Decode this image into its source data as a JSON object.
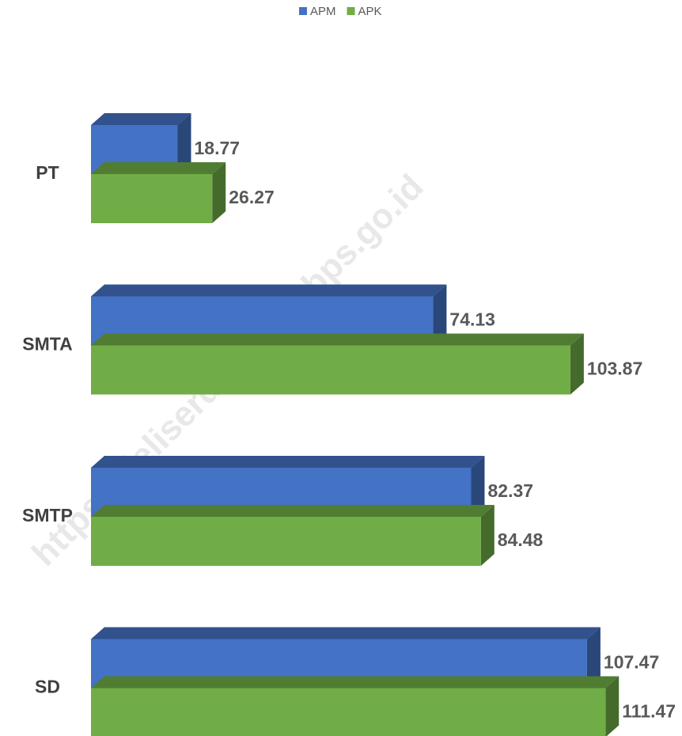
{
  "chart_data": {
    "type": "bar3d_horizontal",
    "categories": [
      "PT",
      "SMTA",
      "SMTP",
      "SD"
    ],
    "series": [
      {
        "name": "APM",
        "color": "#4472c4",
        "values": [
          18.77,
          74.13,
          82.37,
          107.47
        ]
      },
      {
        "name": "APK",
        "color": "#70ad47",
        "values": [
          26.27,
          103.87,
          84.48,
          111.47
        ]
      }
    ],
    "xlim": [
      0,
      120
    ],
    "legend": "top",
    "watermark": "https://deliserdangkab.bps.go.id"
  }
}
